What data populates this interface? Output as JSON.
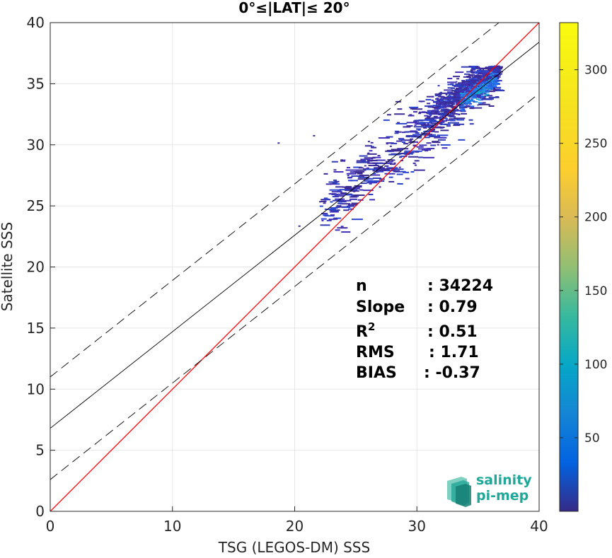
{
  "chart_data": {
    "type": "heatmap",
    "title": "0°≤|LAT|≤ 20°",
    "xlabel": "TSG (LEGOS-DM) SSS",
    "ylabel": "Satellite SSS",
    "xlim": [
      0,
      40
    ],
    "ylim": [
      0,
      40
    ],
    "xticks": [
      "0",
      "10",
      "20",
      "30",
      "40"
    ],
    "yticks": [
      "0",
      "5",
      "10",
      "15",
      "20",
      "25",
      "30",
      "35",
      "40"
    ],
    "grid": true,
    "colorbar": {
      "min": 0,
      "max": 332,
      "ticks": [
        "50",
        "100",
        "150",
        "200",
        "250",
        "300"
      ],
      "colormap": "parula"
    },
    "lines": [
      {
        "name": "identity",
        "color": "#ff0000",
        "style": "solid",
        "x": [
          0,
          40
        ],
        "y": [
          0,
          40
        ]
      },
      {
        "name": "regression",
        "color": "#000000",
        "style": "solid",
        "x": [
          0,
          40
        ],
        "y": [
          6.8,
          38.4
        ]
      },
      {
        "name": "regression-upper",
        "color": "#000000",
        "style": "dashed",
        "x": [
          0,
          40
        ],
        "y": [
          11.0,
          42.6
        ]
      },
      {
        "name": "regression-lower",
        "color": "#000000",
        "style": "dashed",
        "x": [
          0,
          40
        ],
        "y": [
          2.6,
          34.2
        ]
      }
    ],
    "density": {
      "x_range": [
        18.5,
        36.8
      ],
      "y_range": [
        22.5,
        36.5
      ],
      "peak": [
        35.6,
        35.5
      ],
      "max_count": 332
    },
    "stats": [
      {
        "label": "n",
        "value": ": 34224"
      },
      {
        "label": "Slope",
        "value": ": 0.79"
      },
      {
        "label": "R",
        "sup": "2",
        "value": ": 0.51"
      },
      {
        "label": "RMS",
        "value": ": 1.71"
      },
      {
        "label": "BIAS",
        "value": ": -0.37"
      }
    ]
  },
  "logo": {
    "line1": "salinity",
    "line2": "pi-mep",
    "color": "#1fa898"
  }
}
